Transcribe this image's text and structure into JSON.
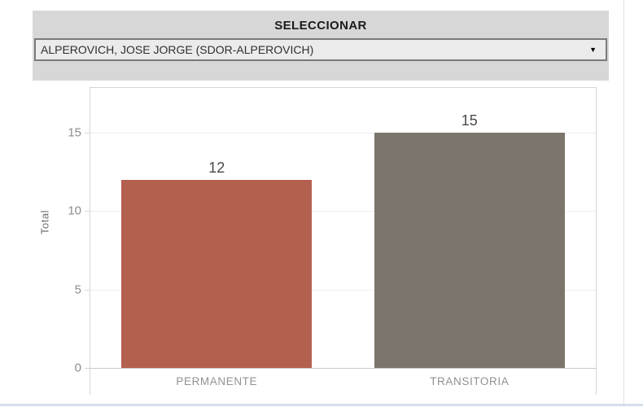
{
  "header": {
    "title": "SELECCIONAR",
    "dropdown": {
      "value": "ALPEROVICH, JOSE JORGE (SDOR-ALPEROVICH)"
    }
  },
  "icons": {
    "chevron_down": "▼"
  },
  "colors": {
    "header_bg": "#d7d7d7",
    "dropdown_bg": "#ebebeb",
    "dropdown_border": "#7a7a7a",
    "axis_border": "#d6d6d6",
    "zero_line": "#c9c9c9",
    "gridline": "#efefef"
  },
  "chart_data": {
    "type": "bar",
    "title": "",
    "categories": [
      "PERMANENTE",
      "TRANSITORIA"
    ],
    "values": [
      12,
      15
    ],
    "bar_colors": [
      "#b4604f",
      "#7c756b"
    ],
    "xlabel": "",
    "ylabel": "Total",
    "yticks": [
      0,
      5,
      10,
      15
    ],
    "ylim": [
      0,
      17.9
    ],
    "grid": true,
    "legend": "none",
    "value_labels_shown": true
  }
}
